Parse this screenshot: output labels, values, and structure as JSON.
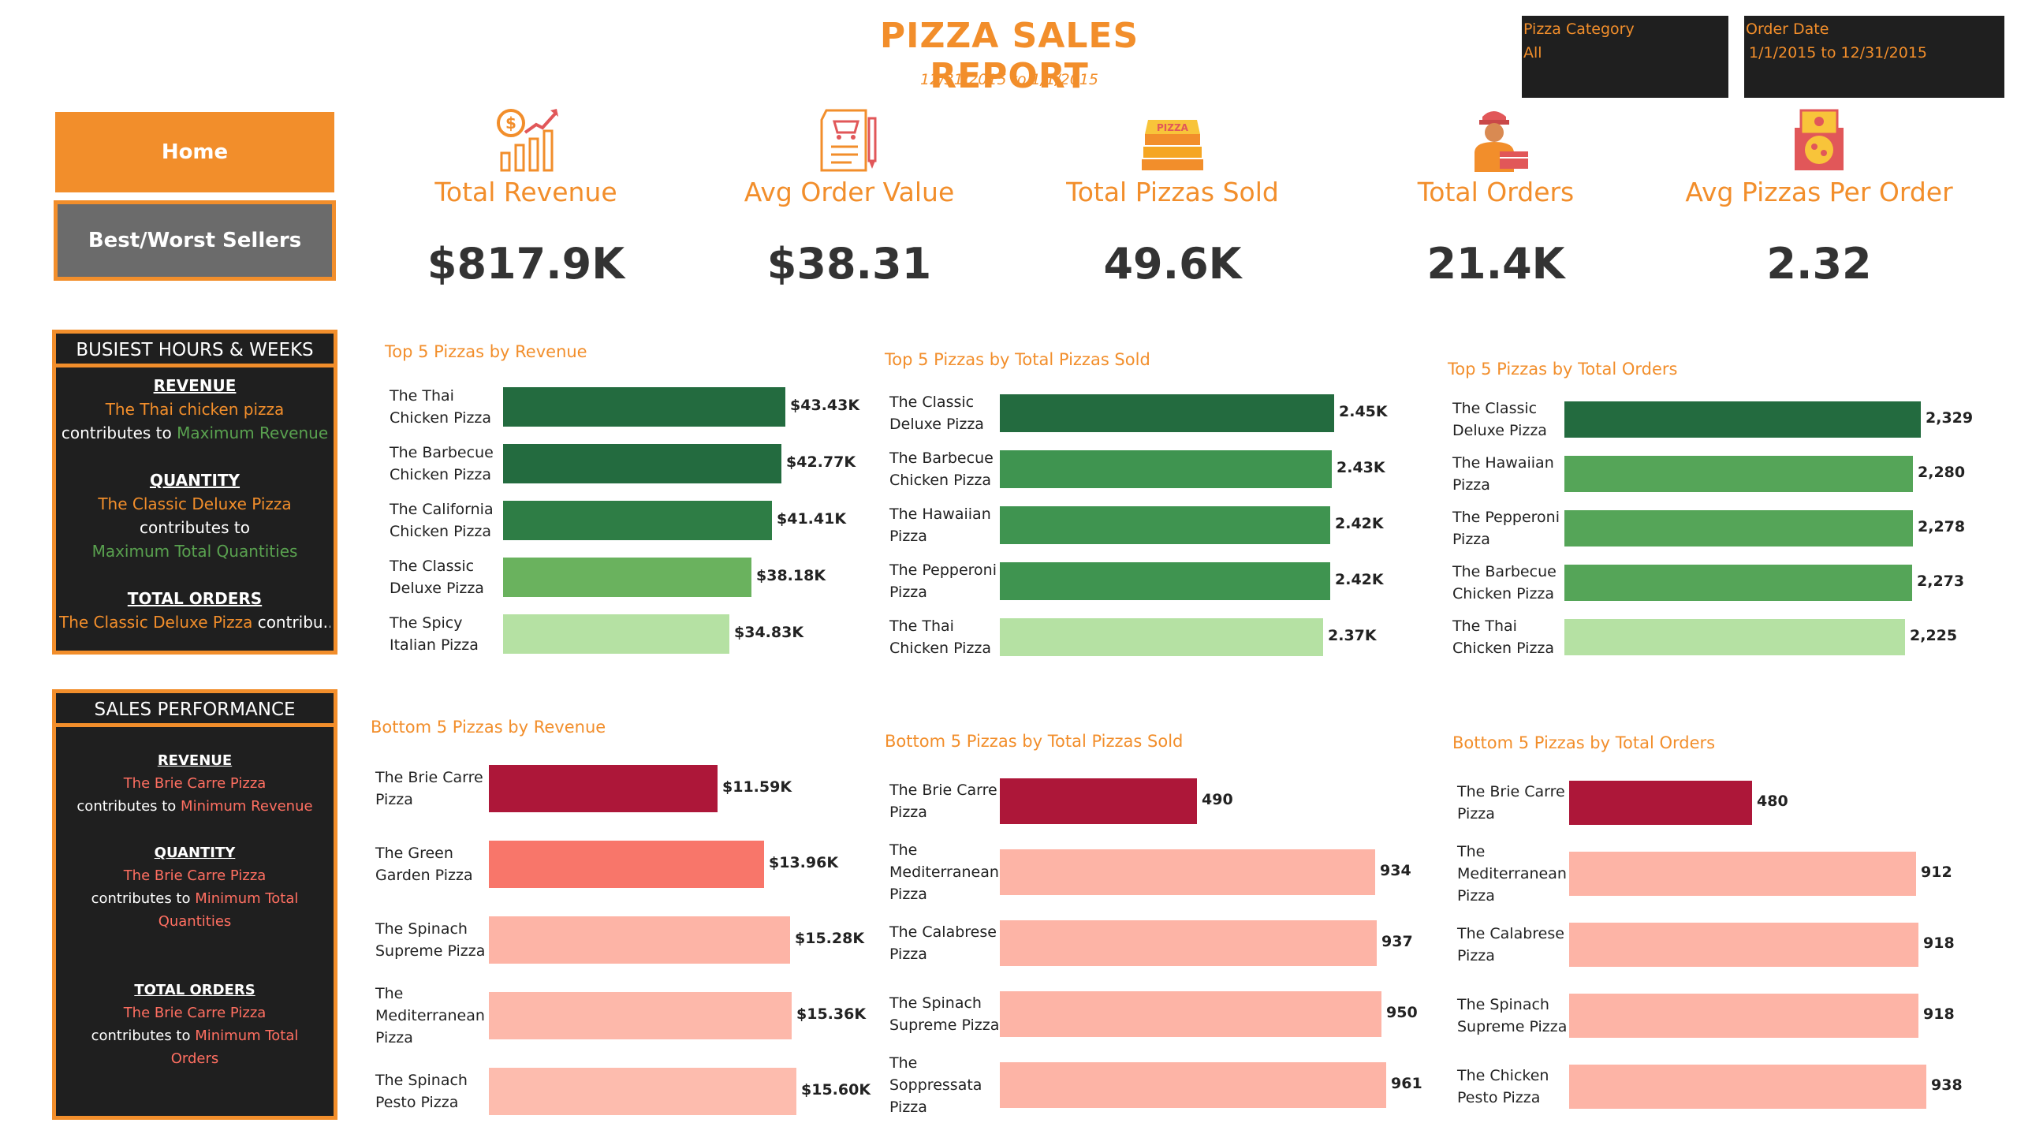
{
  "header": {
    "title": "PIZZA SALES REPORT",
    "subtitle": "12/31/2015 to 1/1/2015"
  },
  "filters": {
    "category": {
      "label": "Pizza Category",
      "value": "All"
    },
    "date": {
      "label": "Order Date",
      "value": "1/1/2015 to 12/31/2015"
    }
  },
  "nav": {
    "home": "Home",
    "best_worst": "Best/Worst Sellers"
  },
  "kpis": [
    {
      "label": "Total Revenue",
      "value": "$817.9K",
      "icon": "revenue-chart-icon"
    },
    {
      "label": "Avg Order Value",
      "value": "$38.31",
      "icon": "receipt-cart-icon"
    },
    {
      "label": "Total Pizzas Sold",
      "value": "49.6K",
      "icon": "pizza-boxes-icon"
    },
    {
      "label": "Total Orders",
      "value": "21.4K",
      "icon": "delivery-person-icon"
    },
    {
      "label": "Avg Pizzas Per Order",
      "value": "2.32",
      "icon": "pizza-order-icon"
    }
  ],
  "busiest_panel": {
    "title": "BUSIEST HOURS & WEEKS",
    "revenue_head": "REVENUE",
    "revenue_name": "The Thai chicken pizza",
    "revenue_pre": "contributes to ",
    "revenue_hl": "Maximum Revenue",
    "quantity_head": "QUANTITY",
    "quantity_name": "The Classic Deluxe Pizza",
    "quantity_pre": "contributes to",
    "quantity_hl": "Maximum Total Quantities",
    "orders_head": "TOTAL ORDERS",
    "orders_name": "The Classic Deluxe Pizza",
    "orders_rest": " contribu.."
  },
  "sales_panel": {
    "title": "SALES PERFORMANCE",
    "revenue_head": "REVENUE",
    "revenue_name": "The Brie Carre Pizza",
    "revenue_pre": "contributes to ",
    "revenue_hl": "Minimum Revenue",
    "quantity_head": "QUANTITY",
    "quantity_name": "The Brie Carre Pizza",
    "quantity_pre": "contributes to ",
    "quantity_hl1": "Minimum Total",
    "quantity_hl2": "Quantities",
    "orders_head": "TOTAL ORDERS",
    "orders_name": "The Brie Carre Pizza",
    "orders_pre": "contributes to ",
    "orders_hl1": "Minimum Total",
    "orders_hl2": "Orders"
  },
  "chart_data": [
    {
      "type": "bar",
      "title": "Top 5 Pizzas by Revenue",
      "categories": [
        [
          "The Thai",
          "Chicken Pizza"
        ],
        [
          "The Barbecue",
          "Chicken Pizza"
        ],
        [
          "The California",
          "Chicken Pizza"
        ],
        [
          "The Classic",
          "Deluxe Pizza"
        ],
        [
          "The Spicy",
          "Italian Pizza"
        ]
      ],
      "values": [
        43430,
        42770,
        41410,
        38180,
        34830
      ],
      "labels": [
        "$43.43K",
        "$42.77K",
        "$41.41K",
        "$38.18K",
        "$34.83K"
      ],
      "colors": [
        "#236b3f",
        "#236b3f",
        "#2e7d45",
        "#6ab25e",
        "#b5e1a3"
      ]
    },
    {
      "type": "bar",
      "title": "Top 5 Pizzas by Total Pizzas Sold",
      "categories": [
        [
          "The Classic",
          "Deluxe Pizza"
        ],
        [
          "The Barbecue",
          "Chicken Pizza"
        ],
        [
          "The Hawaiian",
          "Pizza"
        ],
        [
          "The Pepperoni",
          "Pizza"
        ],
        [
          "The Thai",
          "Chicken Pizza"
        ]
      ],
      "values": [
        2450,
        2430,
        2420,
        2420,
        2370
      ],
      "labels": [
        "2.45K",
        "2.43K",
        "2.42K",
        "2.42K",
        "2.37K"
      ],
      "colors": [
        "#236b3f",
        "#3f9450",
        "#3f9450",
        "#3f9450",
        "#b5e1a3"
      ]
    },
    {
      "type": "bar",
      "title": "Top 5 Pizzas by Total Orders",
      "categories": [
        [
          "The Classic",
          "Deluxe Pizza"
        ],
        [
          "The Hawaiian",
          "Pizza"
        ],
        [
          "The Pepperoni",
          "Pizza"
        ],
        [
          "The Barbecue",
          "Chicken Pizza"
        ],
        [
          "The Thai",
          "Chicken Pizza"
        ]
      ],
      "values": [
        2329,
        2280,
        2278,
        2273,
        2225
      ],
      "labels": [
        "2,329",
        "2,280",
        "2,278",
        "2,273",
        "2,225"
      ],
      "colors": [
        "#236b3f",
        "#55a558",
        "#55a558",
        "#55a558",
        "#b5e1a3"
      ]
    },
    {
      "type": "bar",
      "title": "Bottom 5 Pizzas by Revenue",
      "categories": [
        [
          "The Brie Carre",
          "Pizza"
        ],
        [
          "The Green",
          "Garden Pizza"
        ],
        [
          "The Spinach",
          "Supreme Pizza"
        ],
        [
          "The",
          "Mediterranean",
          "Pizza"
        ],
        [
          "The Spinach",
          "Pesto Pizza"
        ]
      ],
      "values": [
        11590,
        13960,
        15280,
        15360,
        15600
      ],
      "labels": [
        "$11.59K",
        "$13.96K",
        "$15.28K",
        "$15.36K",
        "$15.60K"
      ],
      "colors": [
        "#ad1739",
        "#f8766a",
        "#fdb4a6",
        "#fdb8aa",
        "#fdbcae"
      ]
    },
    {
      "type": "bar",
      "title": "Bottom 5 Pizzas by Total Pizzas Sold",
      "categories": [
        [
          "The Brie Carre",
          "Pizza"
        ],
        [
          "The",
          "Mediterranean",
          "Pizza"
        ],
        [
          "The Calabrese",
          "Pizza"
        ],
        [
          "The Spinach",
          "Supreme Pizza"
        ],
        [
          "The",
          "Soppressata",
          "Pizza"
        ]
      ],
      "values": [
        490,
        934,
        937,
        950,
        961
      ],
      "labels": [
        "490",
        "934",
        "937",
        "950",
        "961"
      ],
      "colors": [
        "#ad1739",
        "#fdb4a6",
        "#fdb4a6",
        "#fdb4a6",
        "#fdb4a6"
      ]
    },
    {
      "type": "bar",
      "title": "Bottom 5 Pizzas by Total Orders",
      "categories": [
        [
          "The Brie Carre",
          "Pizza"
        ],
        [
          "The",
          "Mediterranean",
          "Pizza"
        ],
        [
          "The Calabrese",
          "Pizza"
        ],
        [
          "The Spinach",
          "Supreme Pizza"
        ],
        [
          "The Chicken",
          "Pesto Pizza"
        ]
      ],
      "values": [
        480,
        912,
        918,
        918,
        938
      ],
      "labels": [
        "480",
        "912",
        "918",
        "918",
        "938"
      ],
      "colors": [
        "#ad1739",
        "#fdb4a6",
        "#fdb4a6",
        "#fdb4a6",
        "#fdb4a6"
      ]
    }
  ]
}
